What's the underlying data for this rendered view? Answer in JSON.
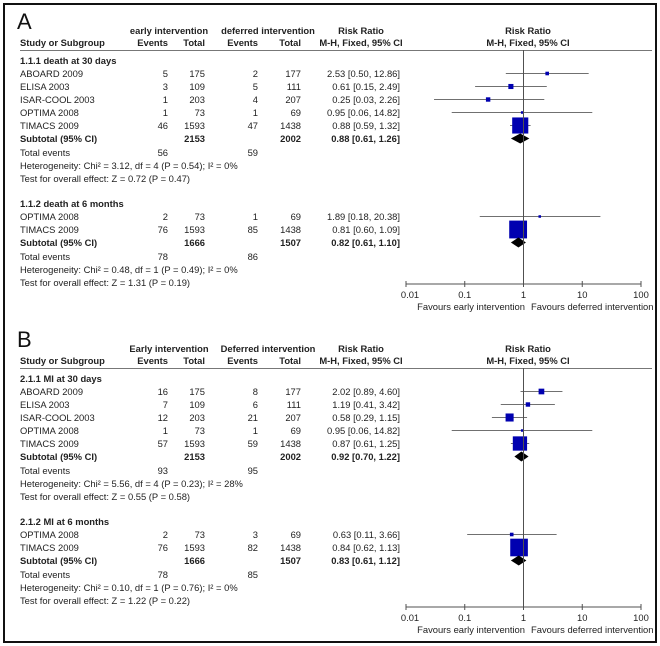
{
  "chart_data": [
    {
      "type": "forest",
      "panel_label": "A",
      "header": {
        "group1": "early intervention",
        "group2": "deferred intervention",
        "study_col": "Study or Subgroup",
        "events": "Events",
        "total": "Total",
        "rr_title": "Risk Ratio",
        "rr_method": "M-H, Fixed, 95% CI"
      },
      "x_axis": {
        "scale": "log",
        "ticks": [
          "0.01",
          "0.1",
          "1",
          "10",
          "100"
        ],
        "tick_values": [
          0.01,
          0.1,
          1,
          10,
          100
        ],
        "range": [
          0.01,
          100
        ]
      },
      "favours_left": "Favours early intervention",
      "favours_right": "Favours deferred intervention",
      "subgroups": [
        {
          "title": "1.1.1 death at 30 days",
          "studies": [
            {
              "name": "ABOARD 2009",
              "e1": "5",
              "n1": "175",
              "e2": "2",
              "n2": "177",
              "rr_text": "2.53 [0.50, 12.86]",
              "rr": 2.53,
              "lo": 0.5,
              "hi": 12.86,
              "weight": 0.04
            },
            {
              "name": "ELISA 2003",
              "e1": "3",
              "n1": "109",
              "e2": "5",
              "n2": "111",
              "rr_text": "0.61 [0.15, 2.49]",
              "rr": 0.61,
              "lo": 0.15,
              "hi": 2.49,
              "weight": 0.08
            },
            {
              "name": "ISAR-COOL 2003",
              "e1": "1",
              "n1": "203",
              "e2": "4",
              "n2": "207",
              "rr_text": "0.25 [0.03, 2.26]",
              "rr": 0.25,
              "lo": 0.03,
              "hi": 2.26,
              "weight": 0.06
            },
            {
              "name": "OPTIMA 2008",
              "e1": "1",
              "n1": "73",
              "e2": "1",
              "n2": "69",
              "rr_text": "0.95 [0.06, 14.82]",
              "rr": 0.95,
              "lo": 0.06,
              "hi": 14.82,
              "weight": 0.02
            },
            {
              "name": "TIMACS 2009",
              "e1": "46",
              "n1": "1593",
              "e2": "47",
              "n2": "1438",
              "rr_text": "0.88 [0.59, 1.32]",
              "rr": 0.88,
              "lo": 0.59,
              "hi": 1.32,
              "weight": 0.8
            }
          ],
          "subtotal": {
            "label": "Subtotal (95% CI)",
            "n1": "2153",
            "n2": "2002",
            "rr_text": "0.88 [0.61, 1.26]",
            "rr": 0.88,
            "lo": 0.61,
            "hi": 1.26
          },
          "total_events": {
            "label": "Total events",
            "e1": "56",
            "e2": "59"
          },
          "heterogeneity": "Heterogeneity: Chi² = 3.12, df = 4 (P = 0.54); I² = 0%",
          "overall_effect": "Test for overall effect: Z = 0.72 (P = 0.47)"
        },
        {
          "title": "1.1.2 death at 6 months",
          "studies": [
            {
              "name": "OPTIMA 2008",
              "e1": "2",
              "n1": "73",
              "e2": "1",
              "n2": "69",
              "rr_text": "1.89 [0.18, 20.38]",
              "rr": 1.89,
              "lo": 0.18,
              "hi": 20.38,
              "weight": 0.02
            },
            {
              "name": "TIMACS 2009",
              "e1": "76",
              "n1": "1593",
              "e2": "85",
              "n2": "1438",
              "rr_text": "0.81 [0.60, 1.09]",
              "rr": 0.81,
              "lo": 0.6,
              "hi": 1.09,
              "weight": 0.98
            }
          ],
          "subtotal": {
            "label": "Subtotal (95% CI)",
            "n1": "1666",
            "n2": "1507",
            "rr_text": "0.82 [0.61, 1.10]",
            "rr": 0.82,
            "lo": 0.61,
            "hi": 1.1
          },
          "total_events": {
            "label": "Total events",
            "e1": "78",
            "e2": "86"
          },
          "heterogeneity": "Heterogeneity: Chi² = 0.48, df = 1 (P = 0.49); I² = 0%",
          "overall_effect": "Test for overall effect: Z = 1.31 (P = 0.19)"
        }
      ]
    },
    {
      "type": "forest",
      "panel_label": "B",
      "header": {
        "group1": "Early intervention",
        "group2": "Deferred intervention",
        "study_col": "Study or Subgroup",
        "events": "Events",
        "total": "Total",
        "rr_title": "Risk Ratio",
        "rr_method": "M-H, Fixed, 95% CI"
      },
      "x_axis": {
        "scale": "log",
        "ticks": [
          "0.01",
          "0.1",
          "1",
          "10",
          "100"
        ],
        "tick_values": [
          0.01,
          0.1,
          1,
          10,
          100
        ],
        "range": [
          0.01,
          100
        ]
      },
      "favours_left": "Favours early intervention",
      "favours_right": "Favours deferred intervention",
      "subgroups": [
        {
          "title": "2.1.1 MI at 30 days",
          "studies": [
            {
              "name": "ABOARD 2009",
              "e1": "16",
              "n1": "175",
              "e2": "8",
              "n2": "177",
              "rr_text": "2.02 [0.89, 4.60]",
              "rr": 2.02,
              "lo": 0.89,
              "hi": 4.6,
              "weight": 0.1
            },
            {
              "name": "ELISA 2003",
              "e1": "7",
              "n1": "109",
              "e2": "6",
              "n2": "111",
              "rr_text": "1.19 [0.41, 3.42]",
              "rr": 1.19,
              "lo": 0.41,
              "hi": 3.42,
              "weight": 0.06
            },
            {
              "name": "ISAR-COOL 2003",
              "e1": "12",
              "n1": "203",
              "e2": "21",
              "n2": "207",
              "rr_text": "0.58 [0.29, 1.15]",
              "rr": 0.58,
              "lo": 0.29,
              "hi": 1.15,
              "weight": 0.2
            },
            {
              "name": "OPTIMA 2008",
              "e1": "1",
              "n1": "73",
              "e2": "1",
              "n2": "69",
              "rr_text": "0.95 [0.06, 14.82]",
              "rr": 0.95,
              "lo": 0.06,
              "hi": 14.82,
              "weight": 0.01
            },
            {
              "name": "TIMACS 2009",
              "e1": "57",
              "n1": "1593",
              "e2": "59",
              "n2": "1438",
              "rr_text": "0.87 [0.61, 1.25]",
              "rr": 0.87,
              "lo": 0.61,
              "hi": 1.25,
              "weight": 0.63
            }
          ],
          "subtotal": {
            "label": "Subtotal (95% CI)",
            "n1": "2153",
            "n2": "2002",
            "rr_text": "0.92 [0.70, 1.22]",
            "rr": 0.92,
            "lo": 0.7,
            "hi": 1.22
          },
          "total_events": {
            "label": "Total events",
            "e1": "93",
            "e2": "95"
          },
          "heterogeneity": "Heterogeneity: Chi² = 5.56, df = 4 (P = 0.23); I² = 28%",
          "overall_effect": "Test for overall effect: Z = 0.55 (P = 0.58)"
        },
        {
          "title": "2.1.2 MI at 6 months",
          "studies": [
            {
              "name": "OPTIMA 2008",
              "e1": "2",
              "n1": "73",
              "e2": "3",
              "n2": "69",
              "rr_text": "0.63 [0.11, 3.66]",
              "rr": 0.63,
              "lo": 0.11,
              "hi": 3.66,
              "weight": 0.04
            },
            {
              "name": "TIMACS 2009",
              "e1": "76",
              "n1": "1593",
              "e2": "82",
              "n2": "1438",
              "rr_text": "0.84 [0.62, 1.13]",
              "rr": 0.84,
              "lo": 0.62,
              "hi": 1.13,
              "weight": 0.96
            }
          ],
          "subtotal": {
            "label": "Subtotal (95% CI)",
            "n1": "1666",
            "n2": "1507",
            "rr_text": "0.83 [0.61, 1.12]",
            "rr": 0.83,
            "lo": 0.61,
            "hi": 1.12
          },
          "total_events": {
            "label": "Total events",
            "e1": "78",
            "e2": "85"
          },
          "heterogeneity": "Heterogeneity: Chi² = 0.10, df = 1 (P = 0.76); I² = 0%",
          "overall_effect": "Test for overall effect: Z = 1.22 (P = 0.22)"
        }
      ]
    }
  ],
  "colors": {
    "study_marker": "#0000b0",
    "diamond": "#000000",
    "ci_line": "#707070",
    "axis": "#505050"
  }
}
